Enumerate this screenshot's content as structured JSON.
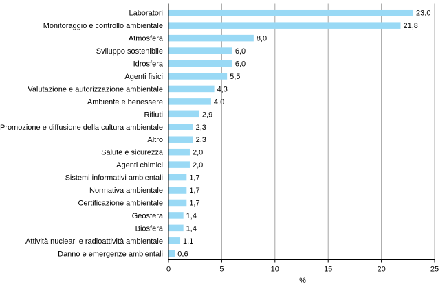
{
  "chart_data": {
    "type": "bar",
    "orientation": "horizontal",
    "categories": [
      "Laboratori",
      "Monitoraggio e controllo ambientale",
      "Atmosfera",
      "Sviluppo sostenibile",
      "Idrosfera",
      "Agenti fisici",
      "Valutazione e autorizzazione ambientale",
      "Ambiente e benessere",
      "Rifiuti",
      "Promozione e diffusione della cultura ambientale",
      "Altro",
      "Salute e sicurezza",
      "Agenti chimici",
      "Sistemi informativi ambientali",
      "Normativa ambientale",
      "Certificazione ambientale",
      "Geosfera",
      "Biosfera",
      "Attività nucleari e radioattività ambientale",
      "Danno e emergenze ambientali"
    ],
    "values": [
      23.0,
      21.8,
      8.0,
      6.0,
      6.0,
      5.5,
      4.3,
      4.0,
      2.9,
      2.3,
      2.3,
      2.0,
      2.0,
      1.7,
      1.7,
      1.7,
      1.4,
      1.4,
      1.1,
      0.6
    ],
    "value_labels": [
      "23,0",
      "21,8",
      "8,0",
      "6,0",
      "6,0",
      "5,5",
      "4,3",
      "4,0",
      "2,9",
      "2,3",
      "2,3",
      "2,0",
      "2,0",
      "1,7",
      "1,7",
      "1,7",
      "1,4",
      "1,4",
      "1,1",
      "0,6"
    ],
    "xlabel": "%",
    "xlim": [
      0,
      25
    ],
    "xticks": [
      0,
      5,
      10,
      15,
      20,
      25
    ],
    "grid": "vertical",
    "legend": "none",
    "bar_color": "#99d9f5"
  }
}
